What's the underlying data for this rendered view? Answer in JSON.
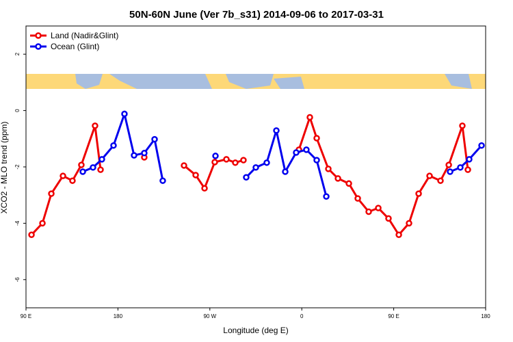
{
  "chart_data": {
    "type": "line",
    "title": "50N-60N June (Ver 7b_s31)   2014-09-06 to 2017-03-31",
    "x_label": "Longitude (deg E)",
    "y_label": "XCO2 - MLO trend (ppm)",
    "xlim": [
      90,
      540
    ],
    "ylim": [
      -7,
      3
    ],
    "xticks": [
      {
        "value": 90,
        "label": "90 E"
      },
      180,
      {
        "value": 270,
        "label": "90 W"
      },
      {
        "value": 360,
        "label": "0"
      },
      {
        "value": 450,
        "label": "90 E"
      },
      {
        "value": 540,
        "label": "180"
      }
    ],
    "yticks": [
      -6,
      -4,
      -2,
      0,
      2
    ],
    "legend": "top-left",
    "series": [
      {
        "name": "Land (Nadir&Glint)",
        "color": "#ee0000",
        "x": [
          95.4,
          106.1,
          114.8,
          126.2,
          135.5,
          144.2,
          157.6,
          163.0,
          null,
          205.8,
          null,
          244.7,
          256.1,
          264.8,
          274.8,
          286.2,
          294.9,
          302.9,
          null,
          357.2,
          367.9,
          374.6,
          386.0,
          395.4,
          406.1,
          414.8,
          425.5,
          434.9,
          444.9,
          455.0,
          465.0,
          474.4,
          485.1,
          495.8,
          503.9,
          517.2,
          522.6
        ],
        "values": [
          -4.41,
          -4.0,
          -2.95,
          -2.32,
          -2.49,
          -1.93,
          -0.54,
          -2.1,
          null,
          -1.66,
          null,
          -1.95,
          -2.29,
          -2.76,
          -1.83,
          -1.73,
          -1.85,
          -1.76,
          null,
          -1.39,
          -0.24,
          -0.98,
          -2.07,
          -2.41,
          -2.59,
          -3.12,
          -3.59,
          -3.46,
          -3.83,
          -4.41,
          -4.0,
          -2.95,
          -2.32,
          -2.49,
          -1.93,
          -0.54,
          -2.1
        ]
      },
      {
        "name": "Ocean (Glint)",
        "color": "#0000ee",
        "x": [
          145.6,
          155.6,
          164.3,
          175.7,
          186.4,
          195.8,
          205.8,
          215.9,
          223.9,
          null,
          275.5,
          null,
          305.6,
          315.0,
          325.7,
          335.1,
          343.8,
          354.5,
          364.5,
          374.6,
          384.0,
          null,
          505.2,
          515.2,
          523.9,
          536.0
        ],
        "values": [
          -2.17,
          -2.02,
          -1.73,
          -1.24,
          -0.12,
          -1.59,
          -1.51,
          -1.02,
          -2.49,
          null,
          -1.61,
          null,
          -2.37,
          -2.02,
          -1.85,
          -0.71,
          -2.17,
          -1.49,
          -1.39,
          -1.76,
          -3.05,
          null,
          -2.17,
          -2.02,
          -1.73,
          -1.24
        ]
      }
    ]
  }
}
